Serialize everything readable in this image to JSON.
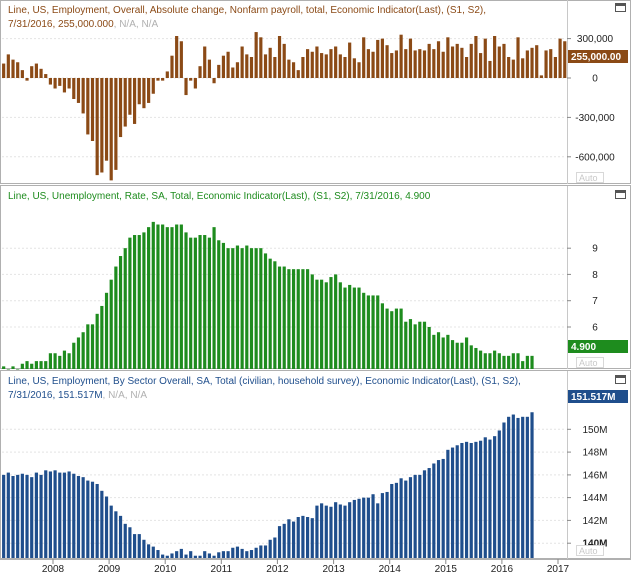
{
  "colors": {
    "panel1": "#8b4a16",
    "panel2": "#1e8c1e",
    "panel3": "#1f4e8c"
  },
  "xaxis": {
    "ticks": [
      "2008",
      "2009",
      "2010",
      "2011",
      "2012",
      "2013",
      "2014",
      "2015",
      "2016",
      "2017"
    ]
  },
  "chart_data": [
    {
      "type": "bar",
      "title_line1": "Line, US, Employment, Overall, Absolute change, Nonfarm payroll, total, Economic Indicator(Last), (S1, S2),",
      "title_line2_value": "7/31/2016, 255,000.000",
      "title_line2_na": ", N/A, N/A",
      "last_label": "255,000.00",
      "auto_label": "Auto",
      "yticks": [
        "300,000",
        "0",
        "-300,000",
        "-600,000"
      ],
      "ylim": [
        -800000,
        320000
      ],
      "x_start": "2007-01",
      "x_end": "2016-07",
      "values": [
        230000,
        110000,
        180000,
        140000,
        120000,
        60000,
        -20000,
        90000,
        110000,
        70000,
        30000,
        -50000,
        -80000,
        -60000,
        -110000,
        -80000,
        -160000,
        -190000,
        -270000,
        -430000,
        -480000,
        -740000,
        -720000,
        -630000,
        -780000,
        -700000,
        -450000,
        -370000,
        -280000,
        -350000,
        -200000,
        -230000,
        -190000,
        -120000,
        -20000,
        -20000,
        50000,
        170000,
        320000,
        280000,
        -130000,
        -20000,
        -80000,
        90000,
        240000,
        140000,
        -40000,
        100000,
        170000,
        200000,
        80000,
        120000,
        240000,
        180000,
        160000,
        350000,
        310000,
        180000,
        230000,
        160000,
        320000,
        260000,
        140000,
        120000,
        60000,
        160000,
        220000,
        200000,
        240000,
        190000,
        180000,
        220000,
        240000,
        180000,
        160000,
        270000,
        150000,
        120000,
        310000,
        220000,
        200000,
        290000,
        300000,
        250000,
        190000,
        210000,
        330000,
        220000,
        300000,
        210000,
        220000,
        210000,
        260000,
        220000,
        280000,
        200000,
        310000,
        240000,
        260000,
        230000,
        160000,
        260000,
        320000,
        190000,
        300000,
        130000,
        320000,
        240000,
        260000,
        160000,
        140000,
        310000,
        150000,
        210000,
        230000,
        250000,
        20000,
        210000,
        220000,
        160000,
        300000,
        280000,
        255000,
        185000,
        171000,
        255000
      ]
    },
    {
      "type": "bar",
      "title": "Line, US, Unemployment, Rate, SA, Total, Economic Indicator(Last), (S1, S2), 7/31/2016, 4.900",
      "last_label": "4.900",
      "auto_label": "Auto",
      "yticks": [
        "9",
        "8",
        "7",
        "6"
      ],
      "ylim": [
        4.4,
        10.3
      ],
      "x_start": "2007-01",
      "x_end": "2016-07",
      "values": [
        4.6,
        4.5,
        4.4,
        4.5,
        4.4,
        4.6,
        4.7,
        4.6,
        4.7,
        4.7,
        4.7,
        5.0,
        5.0,
        4.9,
        5.1,
        5.0,
        5.4,
        5.6,
        5.8,
        6.1,
        6.1,
        6.5,
        6.8,
        7.3,
        7.8,
        8.3,
        8.7,
        9.0,
        9.4,
        9.5,
        9.5,
        9.6,
        9.8,
        10.0,
        9.9,
        9.9,
        9.8,
        9.8,
        9.9,
        9.9,
        9.6,
        9.4,
        9.4,
        9.5,
        9.5,
        9.4,
        9.8,
        9.3,
        9.2,
        9.0,
        9.0,
        9.1,
        9.0,
        9.1,
        9.0,
        9.0,
        9.0,
        8.8,
        8.6,
        8.5,
        8.3,
        8.3,
        8.2,
        8.2,
        8.2,
        8.2,
        8.2,
        8.0,
        7.8,
        7.8,
        7.7,
        7.9,
        8.0,
        7.7,
        7.5,
        7.6,
        7.5,
        7.5,
        7.3,
        7.2,
        7.2,
        7.2,
        6.9,
        6.7,
        6.6,
        6.7,
        6.7,
        6.2,
        6.3,
        6.1,
        6.2,
        6.2,
        6.0,
        5.7,
        5.8,
        5.6,
        5.7,
        5.5,
        5.4,
        5.4,
        5.6,
        5.3,
        5.2,
        5.1,
        5.0,
        5.0,
        5.1,
        5.0,
        4.9,
        4.9,
        5.0,
        5.0,
        4.7,
        4.9,
        4.9
      ]
    },
    {
      "type": "bar",
      "title_line1": "Line, US, Employment, By Sector Overall, SA, Total (civilian, household survey), Economic Indicator(Last), (S1, S2),",
      "title_line2_value": "7/31/2016, 151.517M",
      "title_line2_na": ", N/A, N/A",
      "last_label": "151.517M",
      "auto_label": "Auto",
      "yticks": [
        "150M",
        "148M",
        "146M",
        "144M",
        "142M",
        "140M"
      ],
      "ylim": [
        138.7,
        152.4
      ],
      "x_start": "2007-01",
      "x_end": "2016-07",
      "values": [
        146.3,
        146.0,
        146.2,
        145.9,
        146.0,
        146.1,
        146.0,
        145.8,
        146.2,
        146.0,
        146.4,
        146.3,
        146.4,
        146.2,
        146.2,
        146.3,
        146.1,
        145.9,
        145.8,
        145.5,
        145.4,
        145.2,
        144.6,
        144.1,
        143.3,
        142.8,
        142.4,
        141.7,
        141.4,
        140.8,
        140.8,
        140.3,
        139.9,
        139.7,
        139.4,
        139.0,
        138.9,
        139.1,
        139.3,
        139.5,
        139.0,
        139.3,
        138.9,
        138.9,
        139.3,
        139.1,
        138.9,
        139.2,
        139.3,
        139.3,
        139.6,
        139.7,
        139.5,
        139.3,
        139.4,
        139.6,
        139.8,
        139.8,
        140.3,
        140.5,
        141.5,
        141.7,
        142.1,
        141.9,
        142.3,
        142.4,
        142.3,
        142.2,
        143.3,
        143.5,
        143.3,
        143.2,
        143.6,
        143.4,
        143.3,
        143.6,
        143.8,
        143.9,
        144.0,
        144.0,
        144.3,
        143.5,
        144.4,
        144.5,
        145.2,
        145.3,
        145.7,
        145.5,
        145.8,
        146.0,
        146.0,
        146.4,
        146.6,
        147.0,
        147.3,
        147.4,
        148.2,
        148.4,
        148.6,
        148.8,
        148.9,
        148.8,
        148.9,
        149.0,
        149.3,
        149.1,
        149.4,
        149.9,
        150.6,
        151.1,
        151.3,
        151.0,
        151.1,
        151.1,
        151.5
      ]
    }
  ]
}
